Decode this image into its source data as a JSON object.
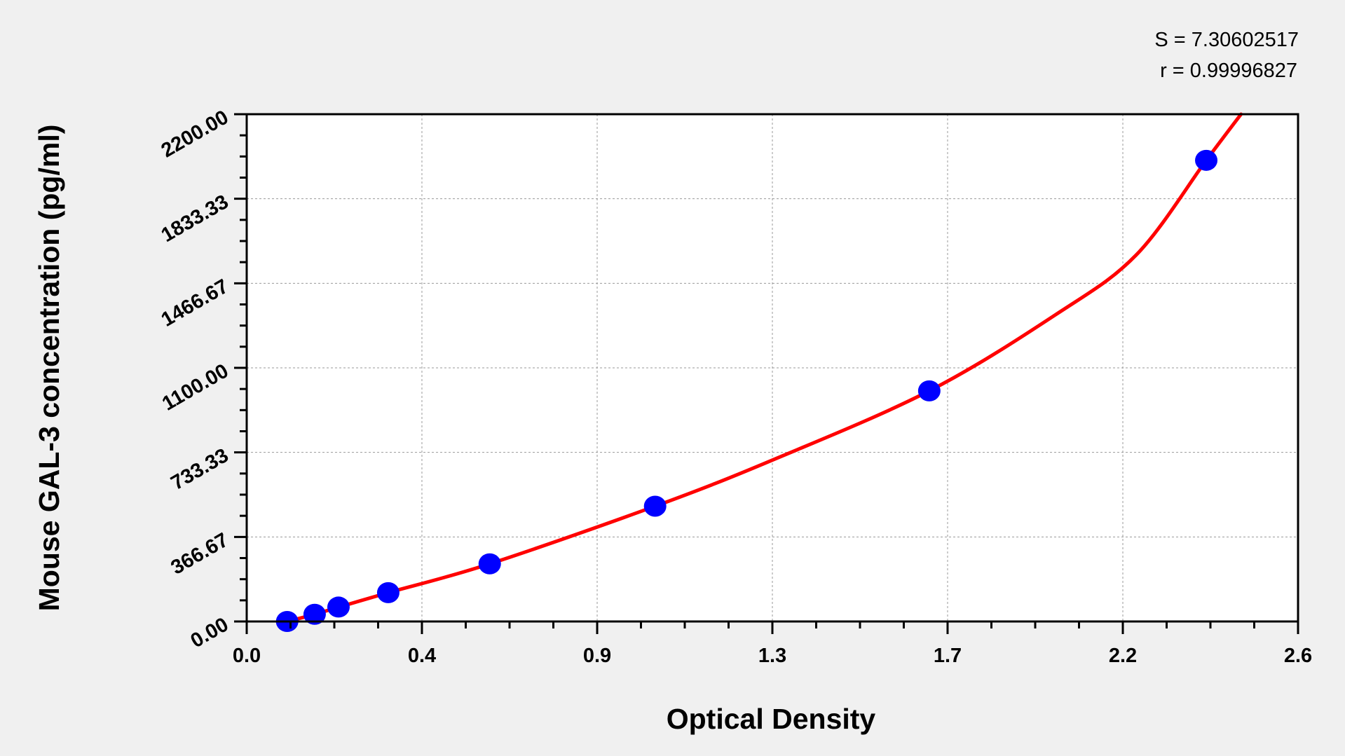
{
  "chart_data": {
    "type": "scatter",
    "xlabel": "Optical Density",
    "ylabel": "Mouse GAL-3 concentration (pg/ml)",
    "xlim": [
      0,
      2.6
    ],
    "ylim": [
      0,
      2200
    ],
    "x_tick_values": [
      0,
      0.4333,
      0.8667,
      1.3,
      1.7333,
      2.1667,
      2.6
    ],
    "x_tick_labels": [
      "0.0",
      "0.4",
      "0.9",
      "1.3",
      "1.7",
      "2.2",
      "2.6"
    ],
    "y_tick_values": [
      0,
      366.67,
      733.33,
      1100,
      1466.67,
      1833.33,
      2200
    ],
    "y_tick_labels": [
      "0.00",
      "366.67",
      "733.33",
      "1100.00",
      "1466.67",
      "1833.33",
      "2200.00"
    ],
    "grid": true,
    "annotations": [
      "S = 7.30602517",
      "r = 0.99996827"
    ],
    "points": {
      "color": "#0000ff",
      "x": [
        0.1,
        0.168,
        0.227,
        0.35,
        0.601,
        1.01,
        1.688,
        2.373
      ],
      "y": [
        0,
        31.25,
        62.5,
        125,
        250,
        500,
        1000,
        2000
      ]
    },
    "fit_curve": {
      "color": "#ff0000",
      "x": [
        0.1,
        0.168,
        0.227,
        0.35,
        0.601,
        1.01,
        1.3,
        1.688,
        2.0,
        2.2,
        2.373,
        2.459
      ],
      "y": [
        0,
        31,
        62,
        125,
        250,
        500,
        700,
        1000,
        1330,
        1590,
        2000,
        2200
      ]
    }
  }
}
